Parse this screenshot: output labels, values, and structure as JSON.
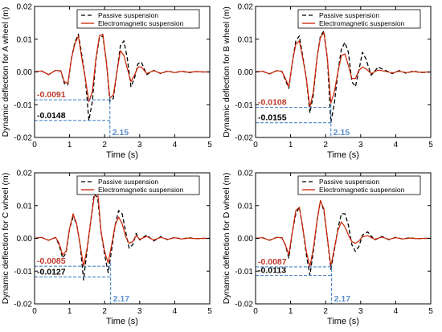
{
  "colors": {
    "passive": "#000000",
    "electromagnetic": "#cc2200",
    "reference": "#4a86c8",
    "annotation_red": "#c0392b",
    "annotation_black": "#000000",
    "annotation_blue": "#5b8fc9"
  },
  "chart_data": [
    {
      "type": "line",
      "id": "A",
      "xlabel": "Time (s)",
      "ylabel": "Dynamic deflection for A wheel (m)",
      "xlim": [
        0,
        5
      ],
      "ylim": [
        -0.02,
        0.02
      ],
      "xticks": [
        0,
        1,
        2,
        3,
        4,
        5
      ],
      "yticks": [
        -0.02,
        -0.01,
        0.0,
        0.01,
        0.02
      ],
      "ytick_labels": [
        "-0.02",
        "-0.01",
        "0.00",
        "0.01",
        "0.02"
      ],
      "legend": {
        "placement": "top-center",
        "entries": [
          "Passive suspension",
          "Electromagnetic suspension"
        ]
      },
      "series": [
        {
          "name": "Passive suspension",
          "style": "dashed",
          "x": [
            0,
            0.2,
            0.4,
            0.6,
            0.75,
            0.85,
            0.95,
            1.05,
            1.15,
            1.25,
            1.35,
            1.45,
            1.55,
            1.65,
            1.75,
            1.85,
            1.95,
            2.05,
            2.15,
            2.25,
            2.35,
            2.45,
            2.55,
            2.65,
            2.75,
            2.85,
            2.95,
            3.05,
            3.2,
            3.4,
            3.6,
            3.8,
            4.0,
            4.2,
            4.4,
            4.6,
            4.8,
            5.0
          ],
          "y": [
            0.0,
            0.0003,
            -0.0008,
            0.0005,
            0.0003,
            -0.0035,
            -0.004,
            0.004,
            0.009,
            0.0115,
            0.005,
            -0.002,
            -0.0148,
            -0.009,
            0.0035,
            0.0105,
            0.011,
            0.003,
            -0.009,
            -0.008,
            0.0,
            0.008,
            0.0095,
            0.004,
            -0.0045,
            -0.002,
            0.0025,
            0.003,
            -0.0008,
            0.0005,
            -0.0005,
            0.0003,
            -0.0002,
            0.0002,
            -0.0002,
            0.0001,
            0.0,
            0.0
          ]
        },
        {
          "name": "Electromagnetic suspension",
          "style": "solid",
          "x": [
            0,
            0.2,
            0.4,
            0.6,
            0.75,
            0.85,
            0.95,
            1.05,
            1.15,
            1.25,
            1.35,
            1.45,
            1.55,
            1.65,
            1.75,
            1.85,
            1.95,
            2.05,
            2.15,
            2.25,
            2.35,
            2.45,
            2.55,
            2.65,
            2.75,
            2.85,
            2.95,
            3.05,
            3.2,
            3.4,
            3.6,
            3.8,
            4.0,
            4.2,
            4.4,
            4.6,
            4.8,
            5.0
          ],
          "y": [
            0.0,
            0.0003,
            -0.0008,
            0.0005,
            0.0003,
            -0.003,
            -0.0035,
            0.004,
            0.0085,
            0.011,
            0.004,
            -0.002,
            -0.0091,
            -0.006,
            0.004,
            0.011,
            0.0115,
            0.003,
            -0.008,
            -0.007,
            0.0,
            0.0065,
            0.005,
            0.001,
            -0.003,
            -0.001,
            0.0015,
            0.0015,
            -0.0005,
            0.0004,
            -0.0004,
            0.0002,
            -0.0002,
            0.0002,
            -0.0001,
            0.0001,
            0.0,
            0.0
          ]
        }
      ],
      "annotations": {
        "red_value": "-0.0091",
        "red_y": -0.0085,
        "black_value": "-0.0148",
        "black_y": -0.0148,
        "time_value": "2.15",
        "time_x": 2.15
      }
    },
    {
      "type": "line",
      "id": "B",
      "xlabel": "Time (s)",
      "ylabel": "Dynamic deflection for B wheel (m)",
      "xlim": [
        0,
        5
      ],
      "ylim": [
        -0.02,
        0.02
      ],
      "xticks": [
        0,
        1,
        2,
        3,
        4,
        5
      ],
      "yticks": [
        -0.02,
        -0.01,
        0.0,
        0.01,
        0.02
      ],
      "ytick_labels": [
        "-0.02",
        "-0.01",
        "0.00",
        "0.01",
        "0.02"
      ],
      "legend": {
        "placement": "top-center",
        "entries": [
          "Passive suspension",
          "Electromagnetic suspension"
        ]
      },
      "series": [
        {
          "name": "Passive suspension",
          "style": "dashed",
          "x": [
            0,
            0.2,
            0.4,
            0.6,
            0.75,
            0.85,
            0.95,
            1.05,
            1.15,
            1.25,
            1.35,
            1.45,
            1.55,
            1.65,
            1.75,
            1.85,
            1.95,
            2.05,
            2.15,
            2.25,
            2.35,
            2.45,
            2.55,
            2.65,
            2.75,
            2.85,
            2.95,
            3.05,
            3.15,
            3.3,
            3.5,
            3.7,
            3.9,
            4.1,
            4.3,
            4.5,
            4.7,
            5.0
          ],
          "y": [
            0.0,
            0.0002,
            -0.0006,
            0.0004,
            0.0002,
            -0.0025,
            -0.005,
            0.003,
            0.0095,
            0.011,
            0.0045,
            -0.002,
            -0.0125,
            -0.007,
            0.004,
            0.011,
            0.0125,
            0.004,
            -0.0155,
            -0.0095,
            0.0,
            0.007,
            0.009,
            0.006,
            -0.003,
            -0.0045,
            0.0005,
            0.006,
            0.004,
            -0.001,
            0.0015,
            0.0005,
            -0.0005,
            0.0004,
            -0.0004,
            0.0003,
            -0.0002,
            0.0
          ]
        },
        {
          "name": "Electromagnetic suspension",
          "style": "solid",
          "x": [
            0,
            0.2,
            0.4,
            0.6,
            0.75,
            0.85,
            0.95,
            1.05,
            1.15,
            1.25,
            1.35,
            1.45,
            1.55,
            1.65,
            1.75,
            1.85,
            1.95,
            2.05,
            2.15,
            2.25,
            2.35,
            2.45,
            2.55,
            2.65,
            2.75,
            2.85,
            2.95,
            3.05,
            3.15,
            3.3,
            3.5,
            3.7,
            3.9,
            4.1,
            4.3,
            4.5,
            4.7,
            5.0
          ],
          "y": [
            0.0,
            0.0002,
            -0.0006,
            0.0004,
            0.0002,
            -0.002,
            -0.0045,
            0.003,
            0.0085,
            0.0095,
            0.004,
            -0.002,
            -0.0108,
            -0.006,
            0.004,
            0.0105,
            0.012,
            0.004,
            -0.0095,
            -0.006,
            0.0,
            0.005,
            0.0055,
            0.002,
            -0.002,
            -0.002,
            0.0005,
            0.0015,
            0.001,
            -0.0005,
            0.0006,
            0.0002,
            -0.0003,
            0.0002,
            -0.0002,
            0.0001,
            -0.0001,
            0.0
          ]
        }
      ],
      "annotations": {
        "red_value": "-0.0108",
        "red_y": -0.0108,
        "black_value": "-0.0155",
        "black_y": -0.0155,
        "time_value": "2.15",
        "time_x": 2.15
      }
    },
    {
      "type": "line",
      "id": "C",
      "xlabel": "Time (s)",
      "ylabel": "Dynamic deflection for C wheel (m)",
      "xlim": [
        0,
        5
      ],
      "ylim": [
        -0.02,
        0.02
      ],
      "xticks": [
        0,
        1,
        2,
        3,
        4,
        5
      ],
      "yticks": [
        -0.02,
        -0.01,
        0.0,
        0.01,
        0.02
      ],
      "ytick_labels": [
        "-0.02",
        "-0.01",
        "0.00",
        "0.01",
        "0.02"
      ],
      "legend": {
        "placement": "top-center",
        "entries": [
          "Passive suspension",
          "Electromagnetic suspension"
        ]
      },
      "series": [
        {
          "name": "Passive suspension",
          "style": "dashed",
          "x": [
            0,
            0.2,
            0.4,
            0.6,
            0.7,
            0.8,
            0.9,
            1.0,
            1.1,
            1.2,
            1.3,
            1.4,
            1.5,
            1.6,
            1.7,
            1.8,
            1.9,
            2.0,
            2.1,
            2.2,
            2.3,
            2.4,
            2.5,
            2.6,
            2.7,
            2.8,
            2.9,
            3.0,
            3.2,
            3.4,
            3.6,
            3.8,
            4.0,
            4.2,
            4.4,
            4.6,
            4.8,
            5.0
          ],
          "y": [
            0.0,
            0.0003,
            -0.0006,
            0.0003,
            -0.002,
            -0.006,
            -0.0045,
            0.003,
            0.0065,
            0.0045,
            -0.002,
            -0.0127,
            -0.0035,
            0.005,
            0.0135,
            0.0125,
            0.002,
            -0.005,
            -0.0105,
            -0.0035,
            0.004,
            0.0085,
            0.0075,
            0.002,
            -0.003,
            -0.002,
            0.0015,
            -0.0005,
            0.001,
            -0.0008,
            0.0005,
            -0.0004,
            0.0003,
            -0.0002,
            0.0002,
            -0.0001,
            0.0,
            0.0
          ]
        },
        {
          "name": "Electromagnetic suspension",
          "style": "solid",
          "x": [
            0,
            0.2,
            0.4,
            0.6,
            0.7,
            0.8,
            0.9,
            1.0,
            1.1,
            1.2,
            1.3,
            1.4,
            1.5,
            1.6,
            1.7,
            1.8,
            1.9,
            2.0,
            2.1,
            2.2,
            2.3,
            2.4,
            2.5,
            2.6,
            2.7,
            2.8,
            2.9,
            3.0,
            3.2,
            3.4,
            3.6,
            3.8,
            4.0,
            4.2,
            4.4,
            4.6,
            4.8,
            5.0
          ],
          "y": [
            0.0,
            0.0003,
            -0.0006,
            0.0003,
            -0.0015,
            -0.005,
            -0.004,
            0.003,
            0.0075,
            0.0045,
            -0.002,
            -0.0085,
            -0.003,
            0.005,
            0.0125,
            0.0145,
            0.002,
            -0.004,
            -0.0075,
            -0.002,
            0.004,
            0.0065,
            0.0045,
            0.0005,
            -0.0015,
            -0.001,
            0.0008,
            -0.0003,
            0.0006,
            -0.0005,
            0.0003,
            -0.0003,
            0.0002,
            -0.0002,
            0.0001,
            -0.0001,
            0.0,
            0.0
          ]
        }
      ],
      "annotations": {
        "red_value": "-0.0085",
        "red_y": -0.0085,
        "black_value": "-0.0127",
        "black_y": -0.0118,
        "time_value": "2.17",
        "time_x": 2.17
      }
    },
    {
      "type": "line",
      "id": "D",
      "xlabel": "Time (s)",
      "ylabel": "Dynamic deflection for D wheel (m)",
      "xlim": [
        0,
        5
      ],
      "ylim": [
        -0.02,
        0.02
      ],
      "xticks": [
        0,
        1,
        2,
        3,
        4,
        5
      ],
      "yticks": [
        -0.02,
        -0.01,
        0.0,
        0.01,
        0.02
      ],
      "ytick_labels": [
        "-0.02",
        "-0.01",
        "0.00",
        "0.01",
        "0.02"
      ],
      "legend": {
        "placement": "top-center",
        "entries": [
          "Passive suspension",
          "Electromagnetic suspension"
        ]
      },
      "series": [
        {
          "name": "Passive suspension",
          "style": "dashed",
          "x": [
            0,
            0.2,
            0.4,
            0.6,
            0.75,
            0.85,
            0.95,
            1.05,
            1.15,
            1.25,
            1.35,
            1.45,
            1.55,
            1.65,
            1.75,
            1.85,
            1.95,
            2.05,
            2.15,
            2.25,
            2.35,
            2.45,
            2.55,
            2.65,
            2.75,
            2.85,
            2.95,
            3.05,
            3.2,
            3.4,
            3.6,
            3.8,
            4.0,
            4.2,
            4.4,
            4.6,
            4.8,
            5.0
          ],
          "y": [
            0.0,
            0.0002,
            -0.0006,
            0.0003,
            0.0002,
            -0.002,
            -0.006,
            0.002,
            0.0075,
            0.0095,
            0.003,
            -0.005,
            -0.0113,
            -0.004,
            0.005,
            0.0115,
            0.0085,
            0.0,
            -0.0095,
            -0.0035,
            0.003,
            0.0075,
            0.0075,
            0.004,
            -0.002,
            -0.004,
            -0.0025,
            0.001,
            0.002,
            -0.0005,
            0.0006,
            -0.0004,
            0.0003,
            -0.0002,
            0.0002,
            -0.0001,
            0.0,
            0.0
          ]
        },
        {
          "name": "Electromagnetic suspension",
          "style": "solid",
          "x": [
            0,
            0.2,
            0.4,
            0.6,
            0.75,
            0.85,
            0.95,
            1.05,
            1.15,
            1.25,
            1.35,
            1.45,
            1.55,
            1.65,
            1.75,
            1.85,
            1.95,
            2.05,
            2.15,
            2.25,
            2.35,
            2.45,
            2.55,
            2.65,
            2.75,
            2.85,
            2.95,
            3.05,
            3.2,
            3.4,
            3.6,
            3.8,
            4.0,
            4.2,
            4.4,
            4.6,
            4.8,
            5.0
          ],
          "y": [
            0.0,
            0.0002,
            -0.0006,
            0.0003,
            0.0002,
            -0.002,
            -0.005,
            0.002,
            0.0085,
            0.0095,
            0.003,
            -0.004,
            -0.0087,
            -0.003,
            0.005,
            0.0115,
            0.009,
            0.0,
            -0.0085,
            -0.003,
            0.0025,
            0.005,
            0.0035,
            0.001,
            -0.001,
            -0.0015,
            -0.0008,
            0.0005,
            0.0008,
            -0.0003,
            0.0004,
            -0.0003,
            0.0002,
            -0.0002,
            0.0001,
            -0.0001,
            0.0,
            0.0
          ]
        }
      ],
      "annotations": {
        "red_value": "-0.0087",
        "red_y": -0.0087,
        "black_value": "-0.0113",
        "black_y": -0.0113,
        "time_value": "2.17",
        "time_x": 2.17
      }
    }
  ]
}
